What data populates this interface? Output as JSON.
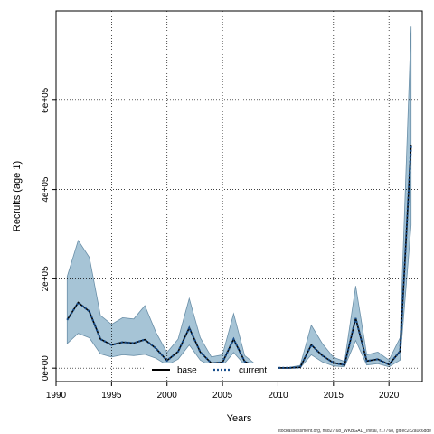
{
  "chart_data": {
    "type": "line",
    "xlabel": "Years",
    "ylabel": "Recruits (age 1)",
    "xlim": [
      1990,
      2023
    ],
    "ylim": [
      -30000,
      800000
    ],
    "x_ticks": [
      1990,
      1995,
      2000,
      2005,
      2010,
      2015,
      2020
    ],
    "x_tick_labels": [
      "1990",
      "1995",
      "2000",
      "2005",
      "2010",
      "2015",
      "2020"
    ],
    "y_ticks": [
      0,
      200000,
      400000,
      600000
    ],
    "y_tick_labels": [
      "0e+00",
      "2e+05",
      "4e+05",
      "6e+05"
    ],
    "grid": true,
    "legend_position": "bottom-center",
    "x": [
      1991,
      1992,
      1993,
      1994,
      1995,
      1996,
      1997,
      1998,
      1999,
      2000,
      2001,
      2002,
      2003,
      2004,
      2005,
      2006,
      2007,
      2008,
      2009,
      2010,
      2011,
      2012,
      2013,
      2014,
      2015,
      2016,
      2017,
      2018,
      2019,
      2020,
      2021,
      2022
    ],
    "series": [
      {
        "name": "base",
        "style": "solid",
        "color": "#000000",
        "values": [
          108000,
          147000,
          127000,
          65000,
          52000,
          58000,
          56000,
          64000,
          44000,
          17000,
          37000,
          90000,
          36000,
          11000,
          13000,
          65000,
          15000,
          3000,
          1000,
          500,
          500,
          2000,
          52000,
          28000,
          12000,
          7000,
          112000,
          16000,
          20000,
          8000,
          38000,
          500000
        ]
      },
      {
        "name": "current",
        "style": "dotted",
        "color": "#1a4f8c",
        "values": [
          108000,
          147000,
          127000,
          65000,
          52000,
          58000,
          56000,
          64000,
          44000,
          17000,
          37000,
          90000,
          36000,
          11000,
          13000,
          65000,
          15000,
          3000,
          1000,
          500,
          500,
          2000,
          52000,
          28000,
          12000,
          7000,
          112000,
          16000,
          20000,
          8000,
          38000,
          500000
        ]
      }
    ],
    "band": {
      "color": "#a6c4d6",
      "edge_color": "#6a8fa8",
      "lower": [
        55000,
        78000,
        68000,
        32000,
        25000,
        30000,
        28000,
        31000,
        22000,
        7000,
        20000,
        52000,
        18000,
        4000,
        5000,
        35000,
        7000,
        1000,
        200,
        100,
        100,
        600,
        30000,
        14000,
        5000,
        3000,
        62000,
        7000,
        10000,
        3000,
        18000,
        320000
      ],
      "upper": [
        205000,
        286000,
        248000,
        118000,
        98000,
        113000,
        110000,
        140000,
        80000,
        35000,
        65000,
        156000,
        68000,
        25000,
        30000,
        122000,
        28000,
        8000,
        3000,
        1500,
        1500,
        6000,
        96000,
        55000,
        24000,
        15000,
        184000,
        30000,
        36000,
        18000,
        68000,
        765000
      ]
    },
    "footer_note": "stockassessment.org, hsd27.6b_WKBGAD_Initial, r17768, git:ec2c2a0c6dde"
  }
}
